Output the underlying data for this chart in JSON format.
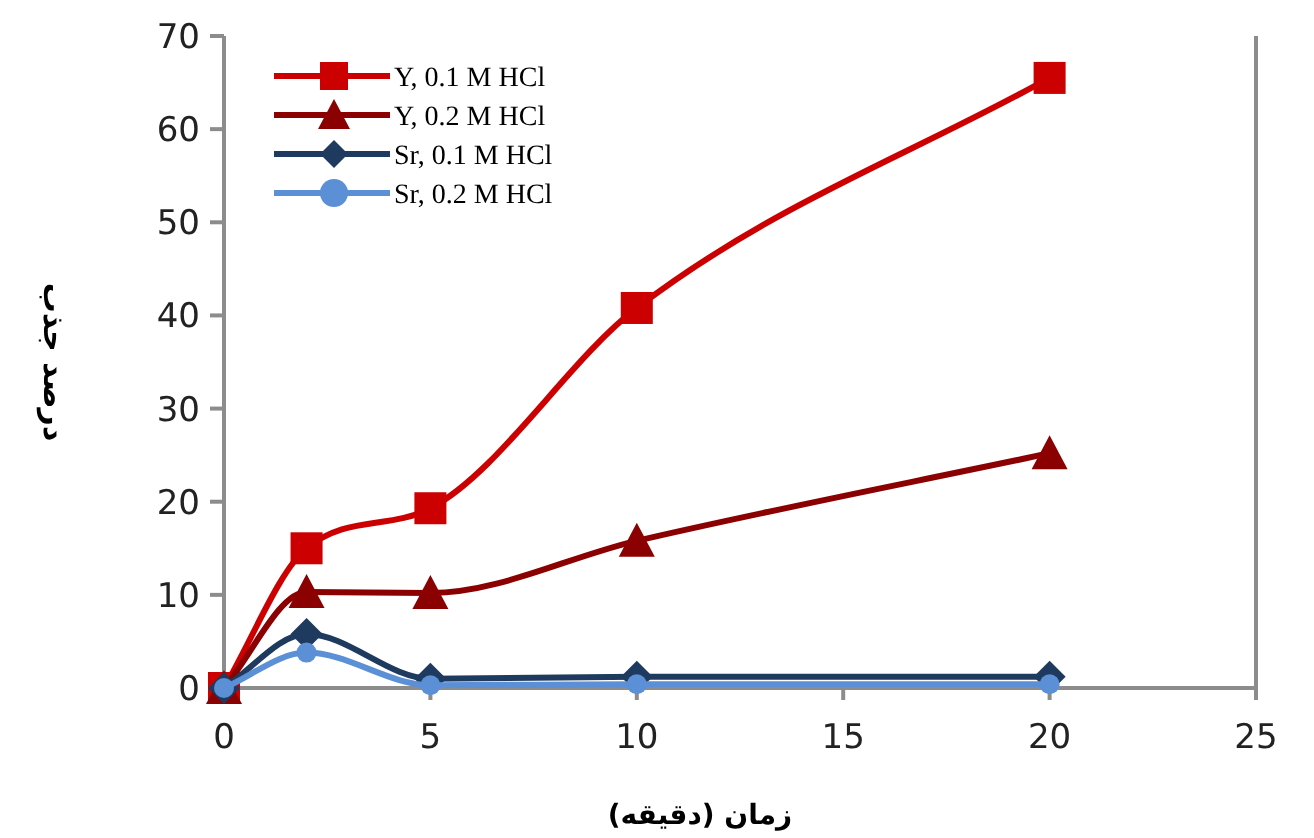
{
  "chart_data": {
    "type": "line",
    "xlabel": "زمان (دقیقه)",
    "ylabel": "درصد جذب",
    "xlim": [
      0,
      25
    ],
    "xticks": [
      0,
      5,
      10,
      15,
      20,
      25
    ],
    "ylim": [
      0,
      70
    ],
    "yticks": [
      0,
      10,
      20,
      30,
      40,
      50,
      60,
      70
    ],
    "grid": false,
    "legend": "top left",
    "series": [
      {
        "name": "Y, 0.1 M HCl",
        "color": "#cc0000",
        "marker": "square",
        "x": [
          0,
          2,
          5,
          10,
          20
        ],
        "values": [
          0,
          15,
          19.3,
          40.8,
          65.5
        ]
      },
      {
        "name": "Y, 0.2 M HCl",
        "color": "#8b0000",
        "marker": "triangle",
        "x": [
          0,
          2,
          5,
          10,
          20
        ],
        "values": [
          0,
          10.3,
          10.2,
          15.8,
          25.2
        ]
      },
      {
        "name": "Sr, 0.1 M HCl",
        "color": "#1f3a5f",
        "marker": "diamond",
        "x": [
          0,
          2,
          5,
          10,
          20
        ],
        "values": [
          0,
          5.8,
          1,
          1.2,
          1.2
        ]
      },
      {
        "name": "Sr, 0.2 M HCl",
        "color": "#5b8fd6",
        "marker": "circle",
        "x": [
          0,
          2,
          5,
          10,
          20
        ],
        "values": [
          0,
          3.8,
          0.3,
          0.4,
          0.4
        ]
      }
    ]
  }
}
